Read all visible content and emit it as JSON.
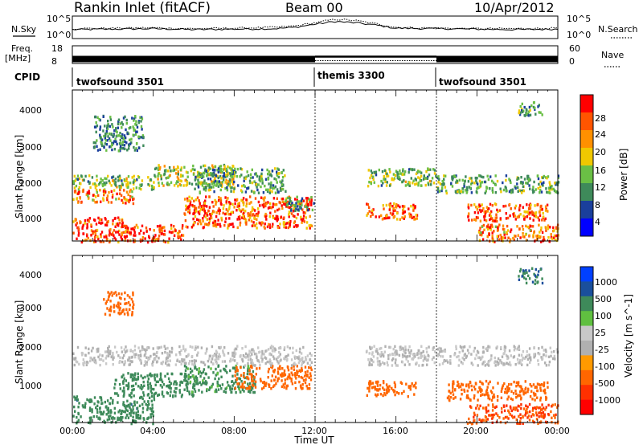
{
  "header": {
    "title": "Rankin Inlet (fitACF)",
    "beam": "Beam 00",
    "date": "10/Apr/2012"
  },
  "panels": {
    "nsky_label": "N.Sky",
    "nsearch_label": "N.Search",
    "nsky_ticks": [
      "10^5",
      "10^0"
    ],
    "nsearch_ticks": [
      "10^5",
      "10^0"
    ],
    "freq_label": "Freq.",
    "freq_unit": "[MHz]",
    "freq_ticks": [
      "18",
      "8"
    ],
    "nave_label": "Nave",
    "nave_ticks": [
      "60",
      "0"
    ],
    "cpid_label": "CPID"
  },
  "colors": {
    "power_scale": [
      "#0000ff",
      "#1a3f9c",
      "#3e8a5a",
      "#6abf45",
      "#f0c800",
      "#ff9000",
      "#ff5500",
      "#ff0000"
    ],
    "velocity_scale": [
      "#0040ff",
      "#1a4f9c",
      "#3e8a5a",
      "#60c040",
      "#c8c8c8",
      "#b0b0b0",
      "#ff9a00",
      "#ff6600",
      "#ff3000",
      "#ff0000"
    ],
    "nsky_line": "#000000"
  },
  "chart_data": [
    {
      "type": "line",
      "name": "N.Sky / N.Search noise",
      "x": [
        "00:00",
        "02:00",
        "04:00",
        "06:00",
        "08:00",
        "10:00",
        "11:00",
        "12:00",
        "13:00",
        "14:00",
        "15:00",
        "16:00",
        "18:00",
        "20:00",
        "22:00",
        "24:00"
      ],
      "series": [
        {
          "values": [
            2.0,
            2.1,
            2.2,
            2.0,
            2.1,
            2.2,
            2.5,
            3.2,
            3.8,
            3.5,
            3.0,
            2.3,
            2.2,
            2.1,
            2.0,
            2.1
          ]
        },
        {
          "values": [
            2.2,
            2.3,
            2.4,
            2.2,
            2.3,
            2.5,
            2.8,
            3.5,
            4.3,
            4.0,
            3.3,
            2.5,
            2.3,
            2.2,
            2.2,
            2.3
          ]
        }
      ],
      "ylim": [
        0,
        5
      ],
      "yscale": "log"
    },
    {
      "type": "line",
      "name": "Frequency / Nave",
      "x": [
        "00:00",
        "12:00",
        "18:00",
        "24:00"
      ],
      "freq_values": [
        10.5,
        10.5,
        10.5,
        10.5
      ],
      "nave_values": [
        15,
        30,
        15,
        15
      ],
      "ylim": [
        8,
        18
      ]
    },
    {
      "type": "table",
      "name": "CPID",
      "rows": [
        {
          "start": "00:00",
          "end": "12:00",
          "label": "twofsound 3501"
        },
        {
          "start": "12:00",
          "end": "18:00",
          "label": "themis 3300"
        },
        {
          "start": "18:00",
          "end": "24:00",
          "label": "twofsound 3501"
        }
      ]
    },
    {
      "type": "heatmap",
      "name": "power",
      "ylabel": "Slant Range [km]",
      "yticks": [
        "1000",
        "2000",
        "3000",
        "4000"
      ],
      "ylim": [
        200,
        4500
      ],
      "colorbar_label": "Power [dB]",
      "colorbar_ticks": [
        "4",
        "8",
        "12",
        "16",
        "20",
        "24",
        "28"
      ],
      "colorbar_range": [
        0,
        32
      ],
      "blobs": [
        {
          "t0": 0.0,
          "t1": 2.5,
          "r0": 200,
          "r1": 900,
          "value": 29
        },
        {
          "t0": 2.5,
          "t1": 5.5,
          "r0": 200,
          "r1": 700,
          "value": 28
        },
        {
          "t0": 5.5,
          "t1": 11.8,
          "r0": 600,
          "r1": 1500,
          "value": 26
        },
        {
          "t0": 0.0,
          "t1": 3.0,
          "r0": 1300,
          "r1": 1700,
          "value": 22
        },
        {
          "t0": 0.0,
          "t1": 4.0,
          "r0": 1700,
          "r1": 2100,
          "value": 14
        },
        {
          "t0": 4.0,
          "t1": 8.0,
          "r0": 1800,
          "r1": 2400,
          "value": 16
        },
        {
          "t0": 6.0,
          "t1": 10.5,
          "r0": 1600,
          "r1": 2300,
          "value": 12
        },
        {
          "t0": 10.5,
          "t1": 11.9,
          "r0": 1100,
          "r1": 1500,
          "value": 10
        },
        {
          "t0": 14.5,
          "t1": 18.0,
          "r0": 1800,
          "r1": 2300,
          "value": 14
        },
        {
          "t0": 14.5,
          "t1": 17.0,
          "r0": 850,
          "r1": 1300,
          "value": 26
        },
        {
          "t0": 18.0,
          "t1": 24.0,
          "r0": 1600,
          "r1": 2100,
          "value": 12
        },
        {
          "t0": 19.5,
          "t1": 23.5,
          "r0": 800,
          "r1": 1300,
          "value": 27
        },
        {
          "t0": 20.0,
          "t1": 24.0,
          "r0": 200,
          "r1": 700,
          "value": 24
        },
        {
          "t0": 22.0,
          "t1": 23.2,
          "r0": 3800,
          "r1": 4200,
          "value": 12
        },
        {
          "t0": 1.0,
          "t1": 3.5,
          "r0": 2800,
          "r1": 3800,
          "value": 10
        }
      ]
    },
    {
      "type": "heatmap",
      "name": "velocity",
      "ylabel": "Slant Range [km]",
      "yticks": [
        "1000",
        "2000",
        "3000",
        "4000"
      ],
      "ylim": [
        200,
        4500
      ],
      "xlabel": "Time UT",
      "xticks": [
        "00:00",
        "04:00",
        "08:00",
        "12:00",
        "16:00",
        "20:00",
        "00:00"
      ],
      "colorbar_label": "Velocity [m s^-1]",
      "colorbar_ticks": [
        "1000",
        "500",
        "100",
        "25",
        "-25",
        "-100",
        "-500",
        "-1000"
      ],
      "blobs": [
        {
          "t0": 0.0,
          "t1": 4.0,
          "r0": 200,
          "r1": 900,
          "value": 400
        },
        {
          "t0": 2.0,
          "t1": 6.0,
          "r0": 900,
          "r1": 1500,
          "value": 250
        },
        {
          "t0": 5.5,
          "t1": 9.0,
          "r0": 1000,
          "r1": 1700,
          "value": 120
        },
        {
          "t0": 8.0,
          "t1": 11.8,
          "r0": 1100,
          "r1": 1700,
          "value": -350
        },
        {
          "t0": 0.0,
          "t1": 11.8,
          "r0": 1700,
          "r1": 2200,
          "value": 0
        },
        {
          "t0": 1.5,
          "t1": 3.0,
          "r0": 3000,
          "r1": 3600,
          "value": -300
        },
        {
          "t0": 14.5,
          "t1": 17.0,
          "r0": 900,
          "r1": 1300,
          "value": -400
        },
        {
          "t0": 14.5,
          "t1": 24.0,
          "r0": 1700,
          "r1": 2200,
          "value": 0
        },
        {
          "t0": 18.5,
          "t1": 23.5,
          "r0": 800,
          "r1": 1300,
          "value": -300
        },
        {
          "t0": 19.5,
          "t1": 24.0,
          "r0": 200,
          "r1": 700,
          "value": -500
        },
        {
          "t0": 22.0,
          "t1": 23.2,
          "r0": 3800,
          "r1": 4200,
          "value": 500
        }
      ]
    }
  ]
}
